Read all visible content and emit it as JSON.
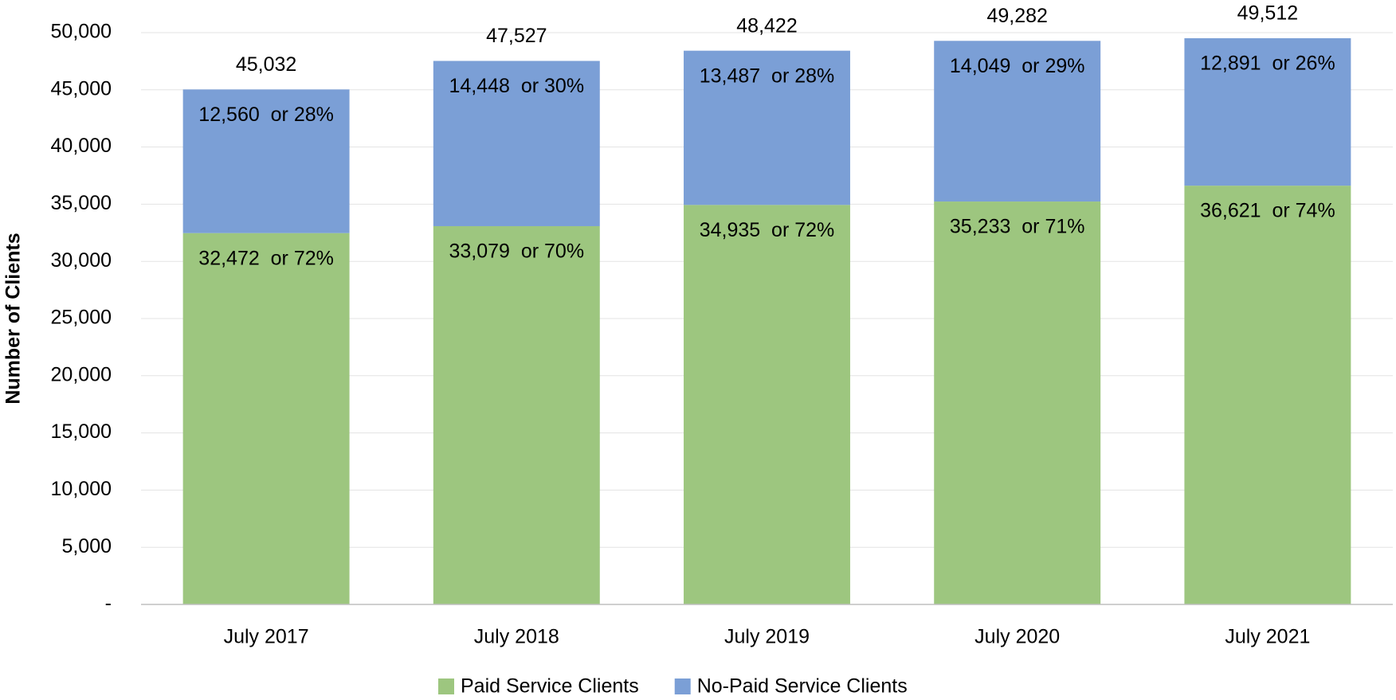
{
  "chart_data": {
    "type": "stacked_bar",
    "y_label": "Number of Clients",
    "categories": [
      "July 2017",
      "July 2018",
      "July 2019",
      "July 2020",
      "July 2021"
    ],
    "series": [
      {
        "name": "Paid Service Clients",
        "color": "#9dc67f",
        "values": [
          32472,
          33079,
          34935,
          35233,
          36621
        ],
        "value_labels": [
          "32,472  or 72%",
          "33,079  or 70%",
          "34,935  or 72%",
          "35,233  or 71%",
          "36,621  or 74%"
        ]
      },
      {
        "name": "No-Paid Service Clients",
        "color": "#7b9fd6",
        "values": [
          12560,
          14448,
          13487,
          14049,
          12891
        ],
        "value_labels": [
          "12,560  or 28%",
          "14,448  or 30%",
          "13,487  or 28%",
          "14,049  or 29%",
          "12,891  or 26%"
        ]
      }
    ],
    "totals": [
      45032,
      47527,
      48422,
      49282,
      49512
    ],
    "total_labels": [
      "45,032",
      "47,527",
      "48,422",
      "49,282",
      "49,512"
    ],
    "ylim": [
      0,
      50000
    ],
    "yticks": [
      {
        "value": 0,
        "label": "-"
      },
      {
        "value": 5000,
        "label": "5,000"
      },
      {
        "value": 10000,
        "label": "10,000"
      },
      {
        "value": 15000,
        "label": "15,000"
      },
      {
        "value": 20000,
        "label": "20,000"
      },
      {
        "value": 25000,
        "label": "25,000"
      },
      {
        "value": 30000,
        "label": "30,000"
      },
      {
        "value": 35000,
        "label": "35,000"
      },
      {
        "value": 40000,
        "label": "40,000"
      },
      {
        "value": 45000,
        "label": "45,000"
      },
      {
        "value": 50000,
        "label": "50,000"
      }
    ],
    "grid": true,
    "legend": "bottom"
  }
}
